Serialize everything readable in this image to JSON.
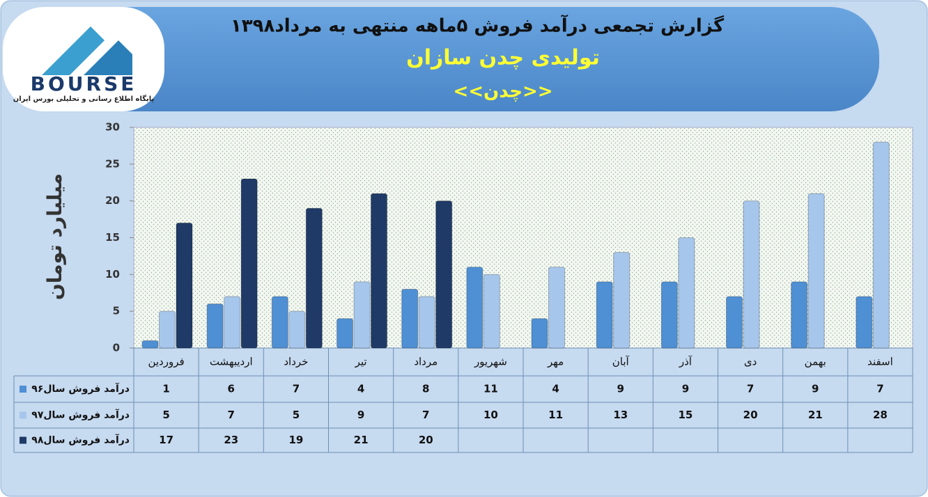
{
  "logo": {
    "name": "BOURSE",
    "tagline": "پایگاه اطلاع رسانی و تحلیلی بورس ایران"
  },
  "chart_data": {
    "type": "bar",
    "title": "گزارش تجمعی درآمد فروش ۵ماهه منتهی به مرداد۱۳۹۸",
    "subtitle": "تولیدی چدن سازان",
    "symbol": "<<چدن>>",
    "y_label": "میلیارد تومان",
    "categories": [
      "فروردین",
      "اردیبهشت",
      "خرداد",
      "تیر",
      "مرداد",
      "شهریور",
      "مهر",
      "آبان",
      "آذر",
      "دی",
      "بهمن",
      "اسفند"
    ],
    "series": [
      {
        "name": "درآمد فروش سال۹۶",
        "color": "#4f8fd3",
        "values": [
          1,
          6,
          7,
          4,
          8,
          11,
          4,
          9,
          9,
          7,
          9,
          7
        ]
      },
      {
        "name": "درآمد فروش سال۹۷",
        "color": "#a6c6ec",
        "values": [
          5,
          7,
          5,
          9,
          7,
          10,
          11,
          13,
          15,
          20,
          21,
          28
        ]
      },
      {
        "name": "درآمد فروش سال۹۸",
        "color": "#1f3a66",
        "values": [
          17,
          23,
          19,
          21,
          20,
          null,
          null,
          null,
          null,
          null,
          null,
          null
        ]
      }
    ],
    "ylim": [
      0,
      30
    ],
    "yticks": [
      0,
      5,
      10,
      15,
      20,
      25,
      30
    ]
  }
}
